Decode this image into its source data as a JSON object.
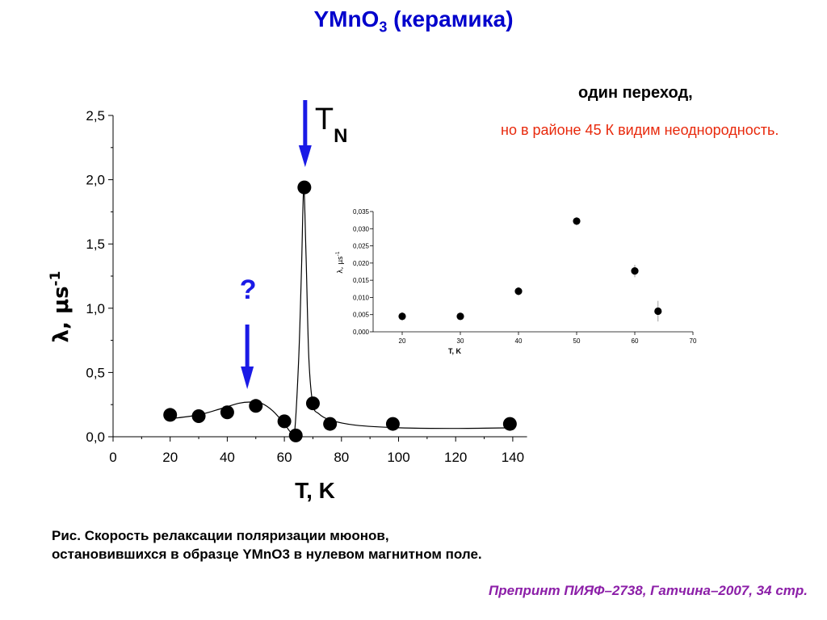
{
  "title": {
    "main": "YMnO",
    "sub": "3",
    "rest": " (керамика)"
  },
  "note": {
    "heading": "один переход,",
    "body": "но в районе 45 К видим неоднородность."
  },
  "caption": "Рис. Скорость релаксации поляризации мюонов, остановившихся в образце YMnO3 в нулевом магнитном поле.",
  "preprint": "Препринт ПИЯФ–2738, Гатчина–2007, 34 стр.",
  "colors": {
    "title": "#0000cc",
    "note_body": "#e8290c",
    "preprint": "#8c1fa8",
    "arrow": "#1a1ae6"
  },
  "chart_data": [
    {
      "type": "scatter",
      "title": "",
      "xlabel": "T, K",
      "ylabel": "λ,  μs",
      "ylabel_sup": "-1",
      "xlim": [
        0,
        145
      ],
      "ylim": [
        0,
        2.5
      ],
      "xticks": [
        "0",
        "20",
        "40",
        "60",
        "80",
        "100",
        "120",
        "140"
      ],
      "yticks": [
        "0,0",
        "0,5",
        "1,0",
        "1,5",
        "2,0",
        "2,5"
      ],
      "points": [
        {
          "x": 20,
          "y": 0.17
        },
        {
          "x": 30,
          "y": 0.16
        },
        {
          "x": 40,
          "y": 0.19
        },
        {
          "x": 50,
          "y": 0.24
        },
        {
          "x": 60,
          "y": 0.12
        },
        {
          "x": 64,
          "y": 0.01
        },
        {
          "x": 67,
          "y": 1.94
        },
        {
          "x": 70,
          "y": 0.26
        },
        {
          "x": 76,
          "y": 0.1
        },
        {
          "x": 98,
          "y": 0.1
        },
        {
          "x": 139,
          "y": 0.1
        }
      ],
      "fit_curve": [
        [
          20,
          0.14
        ],
        [
          30,
          0.17
        ],
        [
          38,
          0.22
        ],
        [
          44,
          0.26
        ],
        [
          48,
          0.27
        ],
        [
          52,
          0.26
        ],
        [
          56,
          0.2
        ],
        [
          60,
          0.1
        ],
        [
          62,
          0.04
        ],
        [
          63.5,
          0.02
        ],
        [
          65,
          0.6
        ],
        [
          66,
          1.3
        ],
        [
          66.8,
          1.94
        ],
        [
          67.6,
          1.4
        ],
        [
          68.6,
          0.6
        ],
        [
          70,
          0.25
        ],
        [
          72,
          0.18
        ],
        [
          76,
          0.13
        ],
        [
          85,
          0.09
        ],
        [
          100,
          0.07
        ],
        [
          120,
          0.065
        ],
        [
          140,
          0.07
        ]
      ],
      "annotations": [
        {
          "text": "T",
          "sub": "N",
          "x": 67
        },
        {
          "text": "?",
          "x": 47
        }
      ]
    },
    {
      "type": "scatter",
      "title": "",
      "xlabel": "T, K",
      "ylabel": "λ,  μs",
      "ylabel_sup": "-1",
      "xlim": [
        15,
        70
      ],
      "ylim": [
        0,
        0.035
      ],
      "xticks": [
        "20",
        "30",
        "40",
        "50",
        "60",
        "70"
      ],
      "yticks": [
        "0,000",
        "0,005",
        "0,010",
        "0,015",
        "0,020",
        "0,025",
        "0,030",
        "0,035"
      ],
      "points": [
        {
          "x": 20,
          "y": 0.0045,
          "err": 0.0012
        },
        {
          "x": 30,
          "y": 0.0045,
          "err": 0.0008
        },
        {
          "x": 40,
          "y": 0.0118,
          "err": 0.0012
        },
        {
          "x": 50,
          "y": 0.0322,
          "err": 0.0012
        },
        {
          "x": 60,
          "y": 0.0177,
          "err": 0.0018
        },
        {
          "x": 64,
          "y": 0.006,
          "err": 0.003
        }
      ]
    }
  ]
}
